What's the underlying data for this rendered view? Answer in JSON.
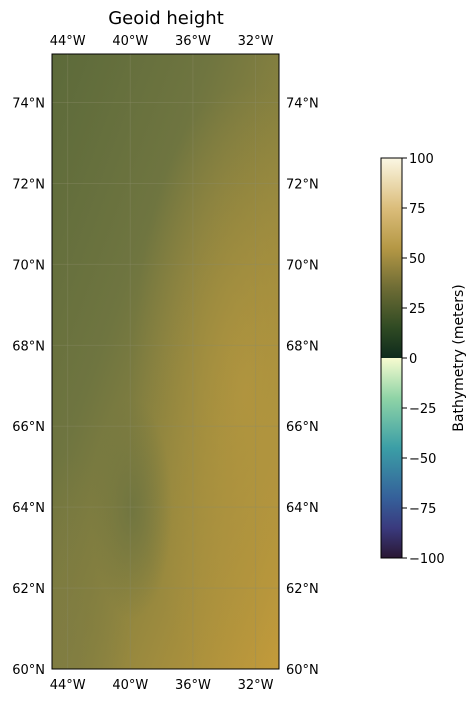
{
  "map": {
    "title": "Geoid height",
    "lon_ticks": [
      {
        "lon": -44,
        "label": "44°W"
      },
      {
        "lon": -40,
        "label": "40°W"
      },
      {
        "lon": -36,
        "label": "36°W"
      },
      {
        "lon": -32,
        "label": "32°W"
      }
    ],
    "lat_ticks": [
      {
        "lat": 74,
        "label": "74°N"
      },
      {
        "lat": 72,
        "label": "72°N"
      },
      {
        "lat": 70,
        "label": "70°N"
      },
      {
        "lat": 68,
        "label": "68°N"
      },
      {
        "lat": 66,
        "label": "66°N"
      },
      {
        "lat": 64,
        "label": "64°N"
      },
      {
        "lat": 62,
        "label": "62°N"
      },
      {
        "lat": 60,
        "label": "60°N"
      }
    ],
    "extent": {
      "lon_min": -45,
      "lon_max": -30.5,
      "lat_min": 60,
      "lat_max": 75.2
    },
    "colors": {
      "top_left": "#5e6b3a",
      "mid_olive": "#7c7a3e",
      "ochre": "#a88f3f",
      "bottom_right": "#c49b3a",
      "grid": "#8b8b6b"
    }
  },
  "colorbar": {
    "label": "Bathymetry (meters)",
    "ticks": [
      {
        "value": 100,
        "label": "100"
      },
      {
        "value": 75,
        "label": "75"
      },
      {
        "value": 50,
        "label": "50"
      },
      {
        "value": 25,
        "label": "25"
      },
      {
        "value": 0,
        "label": "0"
      },
      {
        "value": -25,
        "label": "−25"
      },
      {
        "value": -50,
        "label": "−50"
      },
      {
        "value": -75,
        "label": "−75"
      },
      {
        "value": -100,
        "label": "−100"
      }
    ],
    "range": [
      -100,
      100
    ],
    "stops": [
      {
        "value": 100,
        "color": "#fbf7e3"
      },
      {
        "value": 75,
        "color": "#dbbd7b"
      },
      {
        "value": 55,
        "color": "#b59845"
      },
      {
        "value": 35,
        "color": "#6e6c35"
      },
      {
        "value": 15,
        "color": "#2f4a23"
      },
      {
        "value": 0,
        "color": "#0e2a1c"
      },
      {
        "value": -0.01,
        "color": "#f7fbd0"
      },
      {
        "value": -20,
        "color": "#8fd4a6"
      },
      {
        "value": -45,
        "color": "#3b9ea6"
      },
      {
        "value": -70,
        "color": "#35609a"
      },
      {
        "value": -85,
        "color": "#3a3a7e"
      },
      {
        "value": -100,
        "color": "#2a1733"
      }
    ]
  }
}
